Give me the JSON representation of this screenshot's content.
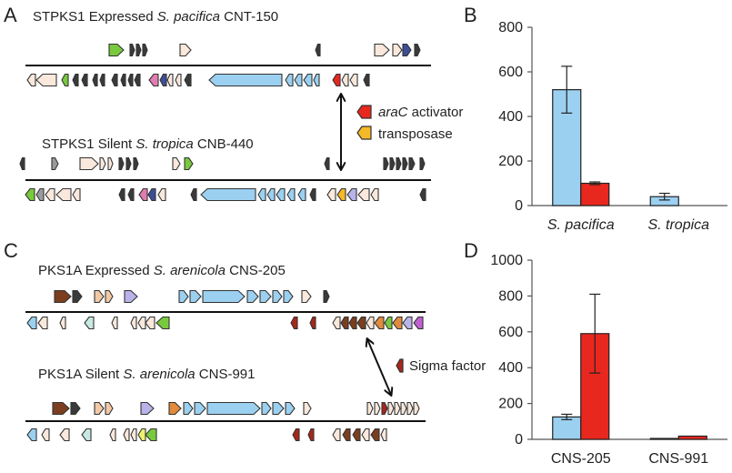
{
  "panels": {
    "A": {
      "letter": "A",
      "top_title_prefix": "STPKS1 Expressed ",
      "top_title_species": "S. pacifica",
      "top_title_strain": " CNT-150",
      "bottom_title_prefix": "STPKS1 Silent ",
      "bottom_title_species": "S. tropica",
      "bottom_title_strain": " CNB-440",
      "legend": [
        {
          "italic": "araC",
          "text": " activator",
          "color": "#e8281e"
        },
        {
          "italic": "",
          "text": "transposase",
          "color": "#f5b828"
        }
      ]
    },
    "B": {
      "letter": "B"
    },
    "C": {
      "letter": "C",
      "top_title_prefix": "PKS1A Expressed ",
      "top_title_species": "S. arenicola",
      "top_title_strain": " CNS-205",
      "bottom_title_prefix": "PKS1A Silent ",
      "bottom_title_species": "S. arenicola",
      "bottom_title_strain": " CNS-991",
      "legend": [
        {
          "italic": "",
          "text": "Sigma factor",
          "color": "#a8261c"
        }
      ]
    },
    "D": {
      "letter": "D"
    }
  },
  "colors": {
    "blue": "#9bd0f0",
    "red": "#e8281e"
  },
  "chart_data": [
    {
      "type": "bar",
      "panel": "B",
      "categories": [
        "S. pacifica",
        "S. tropica"
      ],
      "series": [
        {
          "values": [
            520,
            40
          ],
          "errors": [
            105,
            15
          ],
          "color": "#9bd0f0"
        },
        {
          "values": [
            100,
            0
          ],
          "errors": [
            6,
            0
          ],
          "color": "#e8281e"
        }
      ],
      "ylim": [
        0,
        800
      ],
      "yticks": [
        "0",
        "200",
        "400",
        "600",
        "800"
      ],
      "xlabel": "",
      "ylabel": "",
      "title": ""
    },
    {
      "type": "bar",
      "panel": "D",
      "categories": [
        "CNS-205",
        "CNS-991"
      ],
      "series": [
        {
          "values": [
            125,
            5
          ],
          "errors": [
            15,
            0
          ],
          "color": "#9bd0f0"
        },
        {
          "values": [
            590,
            18
          ],
          "errors": [
            220,
            0
          ],
          "color": "#e8281e"
        }
      ],
      "ylim": [
        0,
        1000
      ],
      "yticks": [
        "0",
        "200",
        "400",
        "600",
        "800",
        "1000"
      ],
      "xlabel": "",
      "ylabel": "",
      "title": ""
    }
  ]
}
